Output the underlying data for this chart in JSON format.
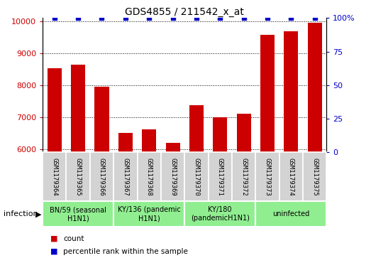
{
  "title": "GDS4855 / 211542_x_at",
  "samples": [
    "GSM1179364",
    "GSM1179365",
    "GSM1179366",
    "GSM1179367",
    "GSM1179368",
    "GSM1179369",
    "GSM1179370",
    "GSM1179371",
    "GSM1179372",
    "GSM1179373",
    "GSM1179374",
    "GSM1179375"
  ],
  "counts": [
    8530,
    8640,
    7950,
    6510,
    6620,
    6190,
    7370,
    6990,
    7110,
    9580,
    9680,
    9950
  ],
  "percentiles": [
    100,
    100,
    100,
    100,
    100,
    100,
    100,
    100,
    100,
    100,
    100,
    100
  ],
  "ylim_left": [
    5900,
    10100
  ],
  "ylim_right": [
    0,
    100
  ],
  "yticks_left": [
    6000,
    7000,
    8000,
    9000,
    10000
  ],
  "yticks_right": [
    0,
    25,
    50,
    75,
    100
  ],
  "ytick_labels_right": [
    "0",
    "25",
    "50",
    "75",
    "100%"
  ],
  "bar_color": "#cc0000",
  "dot_color": "#0000cc",
  "sample_bg_color": "#d3d3d3",
  "group_colors": [
    "#90ee90",
    "#90ee90",
    "#90ee90",
    "#90ee90"
  ],
  "group_info": [
    {
      "label": "BN/59 (seasonal\nH1N1)",
      "start": 0,
      "end": 2
    },
    {
      "label": "KY/136 (pandemic\nH1N1)",
      "start": 3,
      "end": 5
    },
    {
      "label": "KY/180\n(pandemicH1N1)",
      "start": 6,
      "end": 8
    },
    {
      "label": "uninfected",
      "start": 9,
      "end": 11
    }
  ],
  "infection_label": "infection",
  "legend_count_label": "count",
  "legend_percentile_label": "percentile rank within the sample",
  "xlim": [
    -0.5,
    11.5
  ]
}
